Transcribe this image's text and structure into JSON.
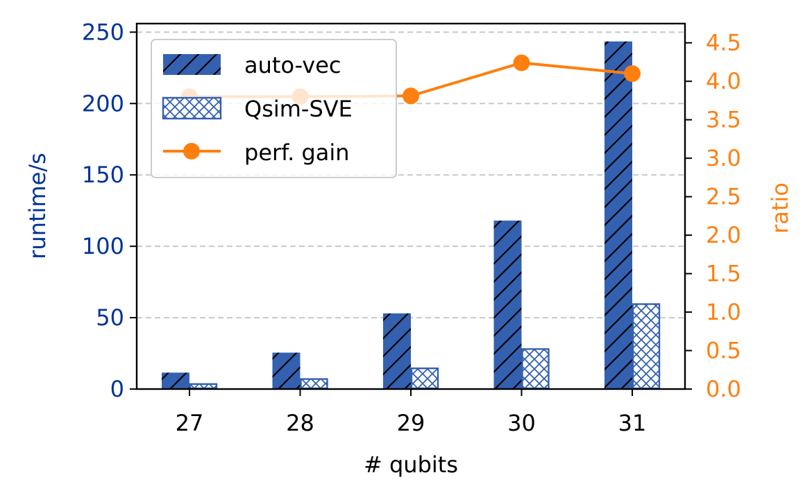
{
  "chart_data": {
    "type": "bar",
    "xlabel": "# qubits",
    "ylabel_left": "runtime/s",
    "ylabel_right": "ratio",
    "categories": [
      "27",
      "28",
      "29",
      "30",
      "31"
    ],
    "left_axis": {
      "ylim": [
        0,
        256
      ],
      "ticks": [
        0,
        50,
        100,
        150,
        200,
        250
      ]
    },
    "right_axis": {
      "ylim": [
        0,
        4.75
      ],
      "ticks": [
        "0.0",
        "0.5",
        "1.0",
        "1.5",
        "2.0",
        "2.5",
        "3.0",
        "3.5",
        "4.0",
        "4.5"
      ]
    },
    "grid": "horizontal dashed (left axis)",
    "legend_position": "top-left",
    "series": [
      {
        "name": "auto-vec",
        "kind": "bar",
        "hatch": "diagonal",
        "color": "#3460b0",
        "values": [
          11.5,
          25.5,
          53,
          118,
          243.5
        ]
      },
      {
        "name": "Qsim-SVE",
        "kind": "bar",
        "hatch": "crosshatch",
        "color": "#3460b0",
        "values": [
          3.5,
          7,
          14.5,
          28,
          59.5
        ]
      },
      {
        "name": "perf. gain",
        "kind": "line",
        "axis": "right",
        "color": "#ff7f0e",
        "values": [
          3.8,
          3.8,
          3.81,
          4.24,
          4.1
        ]
      }
    ],
    "colors": {
      "left_axis": "#003399",
      "right_axis": "#ff7f0e",
      "grid": "#c8c8c8"
    }
  }
}
